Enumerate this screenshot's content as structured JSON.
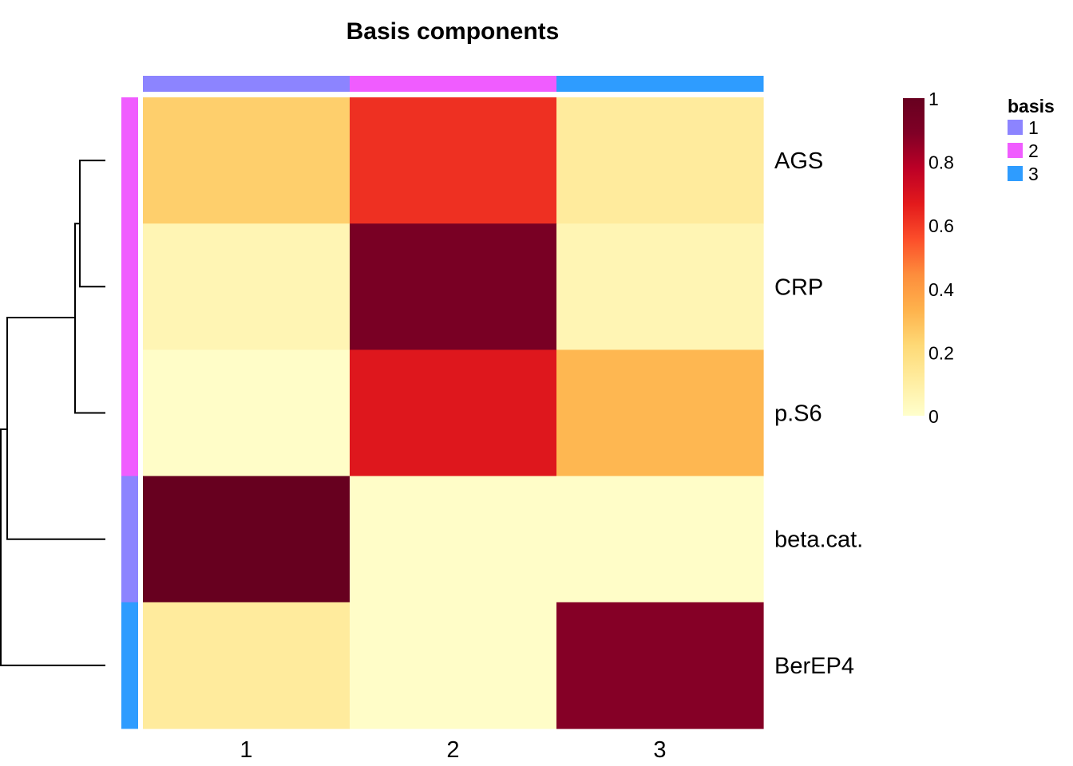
{
  "chart_data": {
    "type": "heatmap",
    "title": "Basis components",
    "columns": [
      "1",
      "2",
      "3"
    ],
    "rows": [
      "AGS",
      "CRP",
      "p.S6",
      "beta.cat.",
      "BerEP4"
    ],
    "values": [
      [
        0.25,
        0.62,
        0.12
      ],
      [
        0.06,
        0.92,
        0.06
      ],
      [
        0.01,
        0.68,
        0.32
      ],
      [
        1.0,
        0.01,
        0.01
      ],
      [
        0.12,
        0.01,
        0.88
      ]
    ],
    "column_annotation": {
      "name": "basis",
      "values": [
        "1",
        "2",
        "3"
      ]
    },
    "row_annotation": {
      "name": "basis",
      "values": [
        "2",
        "2",
        "2",
        "1",
        "3"
      ]
    },
    "annotation_colors": {
      "1": "#8c84ff",
      "2": "#f05cff",
      "3": "#2e9cff"
    },
    "colorbar": {
      "range": [
        0,
        1
      ],
      "ticks": [
        "0",
        "0.2",
        "0.4",
        "0.6",
        "0.8",
        "1"
      ],
      "colors": [
        "#ffffcc",
        "#ffeda0",
        "#fed976",
        "#feb24c",
        "#fd8d3c",
        "#fc4e2a",
        "#e31a1c",
        "#bd0026",
        "#800026",
        "#67001f"
      ]
    },
    "legend": {
      "title": "basis",
      "entries": [
        "1",
        "2",
        "3"
      ],
      "placement": "right"
    },
    "row_dendrogram": true
  }
}
